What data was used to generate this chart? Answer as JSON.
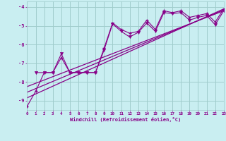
{
  "xlabel": "Windchill (Refroidissement éolien,°C)",
  "xlim": [
    0,
    23
  ],
  "ylim": [
    -9.5,
    -3.7
  ],
  "yticks": [
    -9,
    -8,
    -7,
    -6,
    -5,
    -4
  ],
  "xticks": [
    0,
    1,
    2,
    3,
    4,
    5,
    6,
    7,
    8,
    9,
    10,
    11,
    12,
    13,
    14,
    15,
    16,
    17,
    18,
    19,
    20,
    21,
    22,
    23
  ],
  "bg_color": "#c9eef1",
  "grid_color": "#a0cccc",
  "line_color": "#880088",
  "line1_x": [
    0,
    1,
    2,
    3,
    4,
    5,
    6,
    7,
    8,
    9,
    10,
    11,
    12,
    13,
    14,
    15,
    16,
    17,
    18,
    19,
    20,
    21,
    22,
    23
  ],
  "line1_y": [
    -9.3,
    -8.5,
    -7.5,
    -7.5,
    -6.7,
    -7.5,
    -7.5,
    -7.5,
    -7.5,
    -6.2,
    -4.85,
    -5.2,
    -5.4,
    -5.3,
    -4.7,
    -5.2,
    -4.2,
    -4.3,
    -4.2,
    -4.55,
    -4.45,
    -4.35,
    -4.8,
    -4.1
  ],
  "line2_x": [
    1,
    2,
    3,
    4,
    5,
    6,
    7,
    8,
    9,
    10,
    11,
    12,
    13,
    14,
    15,
    16,
    17,
    18,
    19,
    20,
    21,
    22,
    23
  ],
  "line2_y": [
    -7.5,
    -7.5,
    -7.5,
    -6.5,
    -7.5,
    -7.5,
    -7.5,
    -7.5,
    -6.3,
    -4.9,
    -5.3,
    -5.6,
    -5.35,
    -4.85,
    -5.3,
    -4.3,
    -4.35,
    -4.3,
    -4.7,
    -4.55,
    -4.45,
    -4.95,
    -4.2
  ],
  "reg_lines": [
    {
      "x": [
        0,
        23
      ],
      "y": [
        -8.85,
        -4.1
      ]
    },
    {
      "x": [
        0,
        23
      ],
      "y": [
        -8.55,
        -4.15
      ]
    },
    {
      "x": [
        0,
        23
      ],
      "y": [
        -8.25,
        -4.2
      ]
    }
  ]
}
